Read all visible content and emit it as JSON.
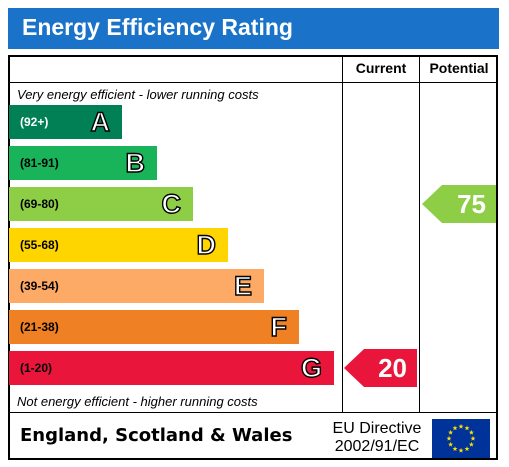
{
  "header": {
    "title": "Energy Efficiency Rating"
  },
  "columns": {
    "current": "Current",
    "potential": "Potential"
  },
  "notes": {
    "top": "Very energy efficient - lower running costs",
    "bottom": "Not energy efficient - higher running costs"
  },
  "chart_data": {
    "type": "bar",
    "title": "Energy Efficiency Rating",
    "bands": [
      {
        "letter": "A",
        "range": "(92+)",
        "color": "#008054",
        "range_color": "#ffffff"
      },
      {
        "letter": "B",
        "range": "(81-91)",
        "color": "#19b459",
        "range_color": "#000000"
      },
      {
        "letter": "C",
        "range": "(69-80)",
        "color": "#8dce46",
        "range_color": "#000000"
      },
      {
        "letter": "D",
        "range": "(55-68)",
        "color": "#ffd500",
        "range_color": "#000000"
      },
      {
        "letter": "E",
        "range": "(39-54)",
        "color": "#fcaa65",
        "range_color": "#000000"
      },
      {
        "letter": "F",
        "range": "(21-38)",
        "color": "#ef8023",
        "range_color": "#000000"
      },
      {
        "letter": "G",
        "range": "(1-20)",
        "color": "#e9153b",
        "range_color": "#000000"
      }
    ],
    "current": {
      "value": "20",
      "band": "G",
      "color": "#e9153b"
    },
    "potential": {
      "value": "75",
      "band": "C",
      "color": "#8dce46"
    }
  },
  "footer": {
    "region": "England, Scotland & Wales",
    "directive_line1": "EU Directive",
    "directive_line2": "2002/91/EC",
    "flag_icon": "eu-flag-icon"
  }
}
